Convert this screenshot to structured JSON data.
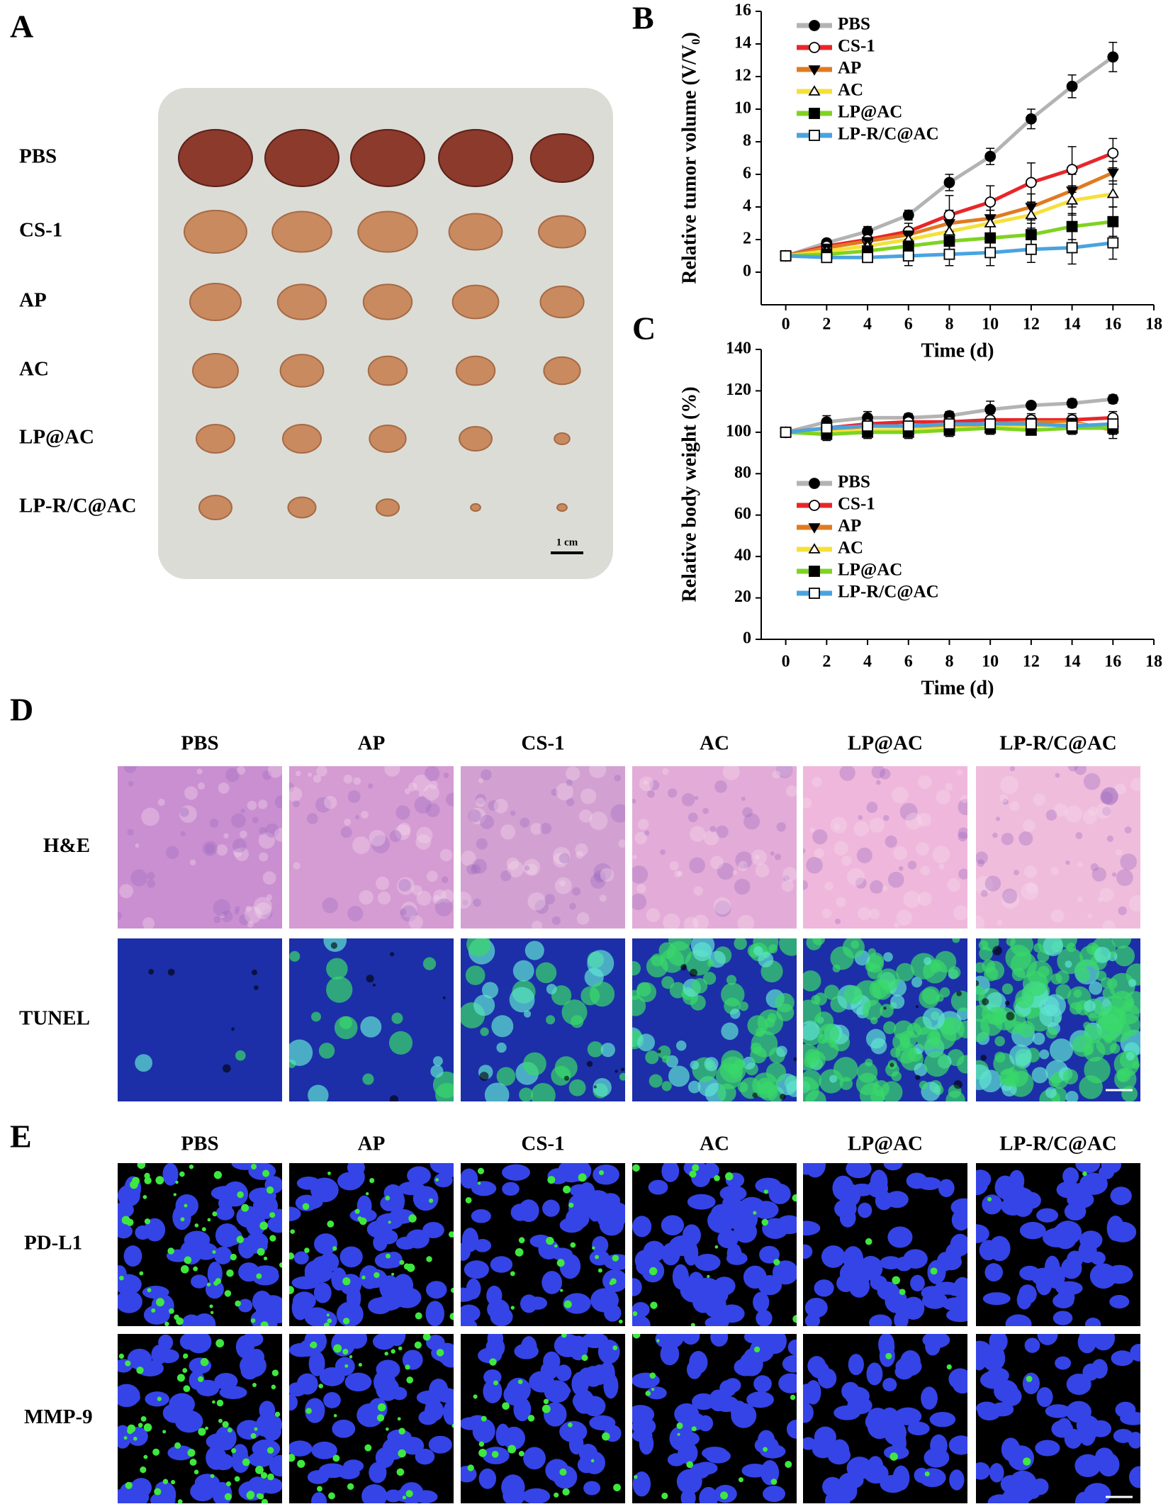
{
  "panel_labels": [
    "A",
    "B",
    "C",
    "D",
    "E"
  ],
  "panel_a": {
    "rows": [
      "PBS",
      "CS-1",
      "AP",
      "AC",
      "LP@AC",
      "LP-R/C@AC"
    ],
    "scale_bar": "1 cm"
  },
  "chart_data": [
    {
      "type": "line",
      "y_label": "Relative tumor volume (V/V₀)",
      "x_label": "Time (d)",
      "x": [
        0,
        2,
        4,
        6,
        8,
        10,
        12,
        14,
        16
      ],
      "xlim": [
        -1.2,
        18
      ],
      "xticks": [
        0,
        2,
        4,
        6,
        8,
        10,
        12,
        14,
        16,
        18
      ],
      "ylim": [
        -2,
        16
      ],
      "yticks": [
        0,
        2,
        4,
        6,
        8,
        10,
        12,
        14,
        16
      ],
      "grid": false,
      "legend": "upper left",
      "series": [
        {
          "name": "PBS",
          "color": "#b3b3b3",
          "marker": "circle",
          "values": [
            1,
            1.8,
            2.5,
            3.5,
            5.5,
            7.1,
            9.4,
            11.4,
            13.2
          ],
          "errors": [
            0.1,
            0.2,
            0.3,
            0.3,
            0.5,
            0.5,
            0.6,
            0.7,
            0.9
          ]
        },
        {
          "name": "CS-1",
          "color": "#e8262a",
          "marker": "circle-open",
          "values": [
            1,
            1.6,
            2.0,
            2.5,
            3.5,
            4.3,
            5.5,
            6.3,
            7.3
          ],
          "errors": [
            0.1,
            0.2,
            0.3,
            0.5,
            1.2,
            1.0,
            1.2,
            1.4,
            0.9
          ]
        },
        {
          "name": "AP",
          "color": "#e07b20",
          "marker": "triangle-down",
          "values": [
            1,
            1.5,
            1.9,
            2.3,
            3.0,
            3.3,
            4.0,
            5.0,
            6.1
          ],
          "errors": [
            0.1,
            0.2,
            0.3,
            0.4,
            0.8,
            0.9,
            0.8,
            1.0,
            0.7
          ]
        },
        {
          "name": "AC",
          "color": "#f5e03a",
          "marker": "triangle-up-open",
          "values": [
            1,
            1.3,
            1.6,
            2.0,
            2.5,
            3.0,
            3.5,
            4.4,
            4.8
          ],
          "errors": [
            0.1,
            0.2,
            0.3,
            0.4,
            0.7,
            0.8,
            0.8,
            0.9,
            0.8
          ]
        },
        {
          "name": "LP@AC",
          "color": "#7ed321",
          "marker": "square",
          "values": [
            1,
            1.1,
            1.3,
            1.6,
            1.9,
            2.1,
            2.3,
            2.8,
            3.1
          ],
          "errors": [
            0.1,
            0.2,
            0.3,
            0.4,
            0.6,
            0.7,
            0.7,
            0.8,
            0.9
          ]
        },
        {
          "name": "LP-R/C@AC",
          "color": "#4aa3df",
          "marker": "square-open",
          "values": [
            1,
            0.9,
            0.9,
            1.0,
            1.1,
            1.2,
            1.4,
            1.5,
            1.8
          ],
          "errors": [
            0.1,
            0.2,
            0.3,
            0.6,
            0.7,
            0.8,
            0.8,
            1.0,
            1.0
          ]
        }
      ]
    },
    {
      "type": "line",
      "y_label": "Relative body weight (%)",
      "x_label": "Time (d)",
      "x": [
        0,
        2,
        4,
        6,
        8,
        10,
        12,
        14,
        16
      ],
      "xlim": [
        -1.2,
        18
      ],
      "xticks": [
        0,
        2,
        4,
        6,
        8,
        10,
        12,
        14,
        16,
        18
      ],
      "ylim": [
        0,
        140
      ],
      "yticks": [
        0,
        20,
        40,
        60,
        80,
        100,
        120,
        140
      ],
      "grid": false,
      "legend": "center left",
      "series": [
        {
          "name": "PBS",
          "color": "#b3b3b3",
          "marker": "circle",
          "values": [
            100,
            105,
            107,
            107,
            108,
            111,
            113,
            114,
            116
          ],
          "errors": [
            1,
            3,
            3,
            2,
            2,
            4,
            1,
            2,
            2
          ]
        },
        {
          "name": "CS-1",
          "color": "#e8262a",
          "marker": "circle-open",
          "values": [
            100,
            102,
            104,
            105,
            105,
            106,
            106,
            106,
            107
          ],
          "errors": [
            1,
            3,
            3,
            2,
            3,
            3,
            3,
            3,
            3
          ]
        },
        {
          "name": "AP",
          "color": "#e07b20",
          "marker": "triangle-down",
          "values": [
            100,
            101,
            103,
            103,
            103,
            104,
            105,
            105,
            101
          ],
          "errors": [
            1,
            3,
            3,
            3,
            3,
            3,
            3,
            3,
            4
          ]
        },
        {
          "name": "AC",
          "color": "#f5e03a",
          "marker": "triangle-up-open",
          "values": [
            100,
            100,
            101,
            101,
            102,
            102,
            103,
            104,
            102
          ],
          "errors": [
            1,
            3,
            3,
            3,
            3,
            3,
            3,
            3,
            3
          ]
        },
        {
          "name": "LP@AC",
          "color": "#7ed321",
          "marker": "square",
          "values": [
            100,
            99,
            100,
            100,
            101,
            102,
            101,
            102,
            102
          ],
          "errors": [
            1,
            3,
            3,
            3,
            3,
            3,
            2,
            3,
            3
          ]
        },
        {
          "name": "LP-R/C@AC",
          "color": "#4aa3df",
          "marker": "square-open",
          "values": [
            100,
            102,
            103,
            103,
            104,
            104,
            104,
            103,
            104
          ],
          "errors": [
            1,
            3,
            3,
            3,
            3,
            3,
            3,
            3,
            3
          ]
        }
      ]
    }
  ],
  "panel_d": {
    "columns": [
      "PBS",
      "AP",
      "CS-1",
      "AC",
      "LP@AC",
      "LP-R/C@AC"
    ],
    "rows": [
      "H&E",
      "TUNEL"
    ]
  },
  "panel_e": {
    "columns": [
      "PBS",
      "AP",
      "CS-1",
      "AC",
      "LP@AC",
      "LP-R/C@AC"
    ],
    "rows": [
      "PD-L1",
      "MMP-9"
    ]
  }
}
